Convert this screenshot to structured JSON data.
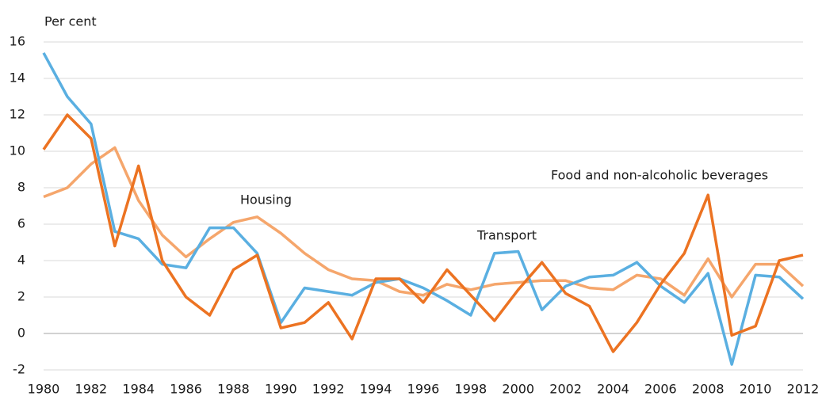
{
  "chart_data": {
    "type": "line",
    "y_label": "Per cent",
    "x": [
      1980,
      1981,
      1982,
      1983,
      1984,
      1985,
      1986,
      1987,
      1988,
      1989,
      1990,
      1991,
      1992,
      1993,
      1994,
      1995,
      1996,
      1997,
      1998,
      1999,
      2000,
      2001,
      2002,
      2003,
      2004,
      2005,
      2006,
      2007,
      2008,
      2009,
      2010,
      2011,
      2012
    ],
    "xlim": [
      1980,
      2012
    ],
    "xticks": [
      1980,
      1982,
      1984,
      1986,
      1988,
      1990,
      1992,
      1994,
      1996,
      1998,
      2000,
      2002,
      2004,
      2006,
      2008,
      2010,
      2012
    ],
    "ylim": [
      -2,
      16
    ],
    "yticks": [
      -2,
      0,
      2,
      4,
      6,
      8,
      10,
      12,
      14,
      16
    ],
    "grid": true,
    "series": [
      {
        "name": "Housing",
        "color": "#f5a66c",
        "values": [
          7.5,
          8.0,
          9.3,
          10.2,
          7.3,
          5.4,
          4.2,
          5.2,
          6.1,
          6.4,
          5.5,
          4.4,
          3.5,
          3.0,
          2.9,
          2.3,
          2.1,
          2.7,
          2.4,
          2.7,
          2.8,
          2.9,
          2.9,
          2.5,
          2.4,
          3.2,
          3.0,
          2.1,
          4.1,
          2.0,
          3.8,
          3.8,
          2.6
        ]
      },
      {
        "name": "Transport",
        "color": "#5aafe1",
        "values": [
          15.4,
          13.0,
          11.5,
          5.6,
          5.2,
          3.8,
          3.6,
          5.8,
          5.8,
          4.4,
          0.6,
          2.5,
          2.3,
          2.1,
          2.8,
          3.0,
          2.5,
          1.8,
          1.0,
          4.4,
          4.5,
          1.3,
          2.6,
          3.1,
          3.2,
          3.9,
          2.6,
          1.7,
          3.3,
          -1.7,
          3.2,
          3.1,
          1.9
        ]
      },
      {
        "name": "Food and non-alcoholic beverages",
        "color": "#ec7322",
        "values": [
          10.1,
          12.0,
          10.7,
          4.8,
          9.2,
          4.0,
          2.0,
          1.0,
          3.5,
          4.3,
          0.3,
          0.6,
          1.7,
          -0.3,
          3.0,
          3.0,
          1.7,
          3.5,
          2.1,
          0.7,
          2.4,
          3.9,
          2.2,
          1.5,
          -1.0,
          0.6,
          2.7,
          4.4,
          7.6,
          -0.1,
          0.4,
          4.0,
          4.3
        ]
      }
    ]
  }
}
